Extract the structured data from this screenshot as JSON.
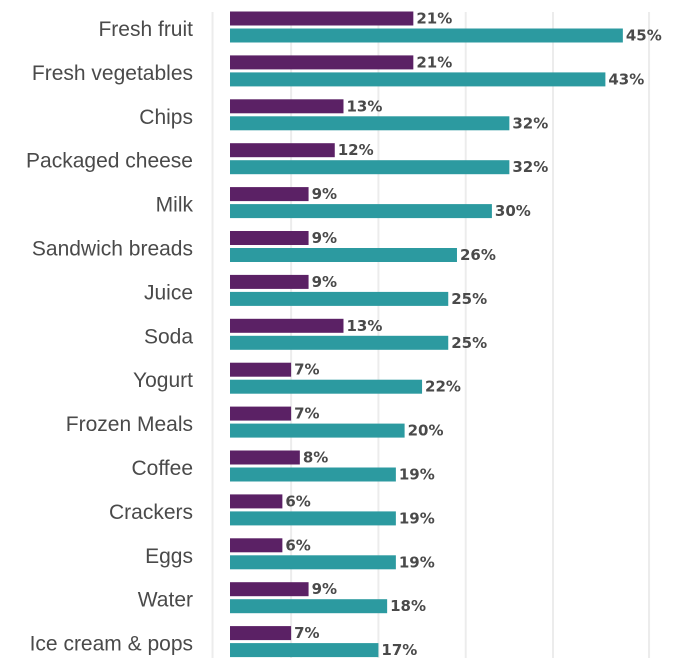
{
  "chart_data": {
    "type": "bar",
    "orientation": "horizontal",
    "categories": [
      "Fresh fruit",
      "Fresh vegetables",
      "Chips",
      "Packaged cheese",
      "Milk",
      "Sandwich breads",
      "Juice",
      "Soda",
      "Yogurt",
      "Frozen Meals",
      "Coffee",
      "Crackers",
      "Eggs",
      "Water",
      "Ice cream & pops"
    ],
    "series": [
      {
        "values": [
          21,
          21,
          13,
          12,
          9,
          9,
          9,
          13,
          7,
          7,
          8,
          6,
          6,
          9,
          7
        ],
        "color": "#5b2165"
      },
      {
        "values": [
          45,
          43,
          32,
          32,
          30,
          26,
          25,
          25,
          22,
          20,
          19,
          19,
          19,
          18,
          17
        ],
        "color": "#2c9aa0"
      }
    ],
    "value_suffix": "%",
    "xlim": [
      0,
      50
    ],
    "grid": true,
    "legend": "none"
  }
}
